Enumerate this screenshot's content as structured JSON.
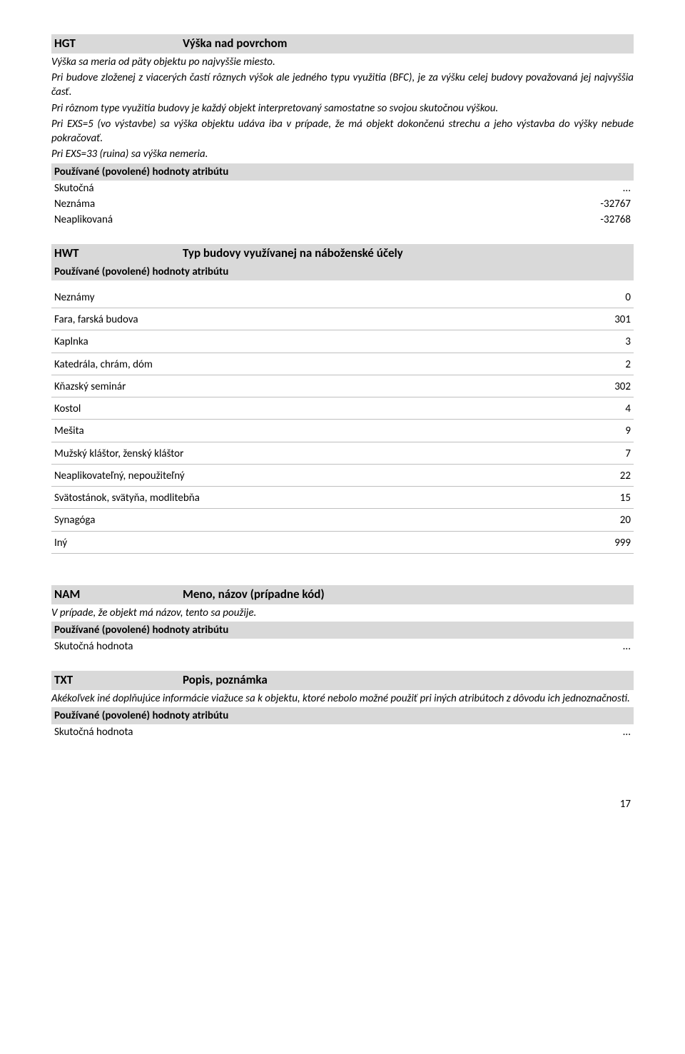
{
  "hgt": {
    "code": "HGT",
    "title": "Výška nad povrchom",
    "desc": [
      "Výška sa meria od päty objektu po najvyššie miesto.",
      "Pri budove zloženej z viacerých častí rôznych výšok ale jedného typu využitia (BFC), je za výšku celej budovy považovaná jej najvyššia časť.",
      "Pri rôznom type využitia budovy je každý objekt interpretovaný samostatne so svojou skutočnou výškou.",
      "Pri EXS=5 (vo výstavbe) sa výška objektu udáva iba v prípade, že má objekt dokončenú strechu a jeho výstavba do výšky nebude pokračovať.",
      "Pri EXS=33 (ruina) sa výška nemeria."
    ],
    "used_values_label": "Používané (povolené) hodnoty atribútu",
    "rows": [
      {
        "k": "Skutočná",
        "v": "..."
      },
      {
        "k": "Neznáma",
        "v": "-32767"
      },
      {
        "k": "Neaplikovaná",
        "v": "-32768"
      }
    ]
  },
  "hwt": {
    "code": "HWT",
    "title": "Typ budovy využívanej na náboženské účely",
    "used_values_label": "Používané (povolené) hodnoty atribútu",
    "rows": [
      {
        "k": "Neznámy",
        "v": "0"
      },
      {
        "k": "Fara, farská budova",
        "v": "301"
      },
      {
        "k": "Kaplnka",
        "v": "3"
      },
      {
        "k": "Katedrála, chrám, dóm",
        "v": "2"
      },
      {
        "k": "Kňazský seminár",
        "v": "302"
      },
      {
        "k": "Kostol",
        "v": "4"
      },
      {
        "k": "Mešita",
        "v": "9"
      },
      {
        "k": "Mužský kláštor, ženský kláštor",
        "v": "7"
      },
      {
        "k": "Neaplikovateľný, nepoužiteľný",
        "v": "22"
      },
      {
        "k": "Svätostánok, svätyňa, modlitebňa",
        "v": "15"
      },
      {
        "k": "Synagóga",
        "v": "20"
      },
      {
        "k": "Iný",
        "v": "999"
      }
    ]
  },
  "nam": {
    "code": "NAM",
    "title": "Meno, názov (prípadne kód)",
    "desc": "V prípade, že objekt má názov, tento sa použije.",
    "used_values_label": "Používané (povolené) hodnoty atribútu",
    "row": {
      "k": "Skutočná hodnota",
      "v": "..."
    }
  },
  "txt": {
    "code": "TXT",
    "title": "Popis, poznámka",
    "desc": "Akékoľvek iné doplňujúce informácie viažuce sa k objektu, ktoré nebolo možné použiť pri iných atribútoch z dôvodu ich jednoznačnosti.",
    "used_values_label": "Používané (povolené) hodnoty atribútu",
    "row": {
      "k": "Skutočná hodnota",
      "v": "..."
    }
  },
  "page_number": "17"
}
